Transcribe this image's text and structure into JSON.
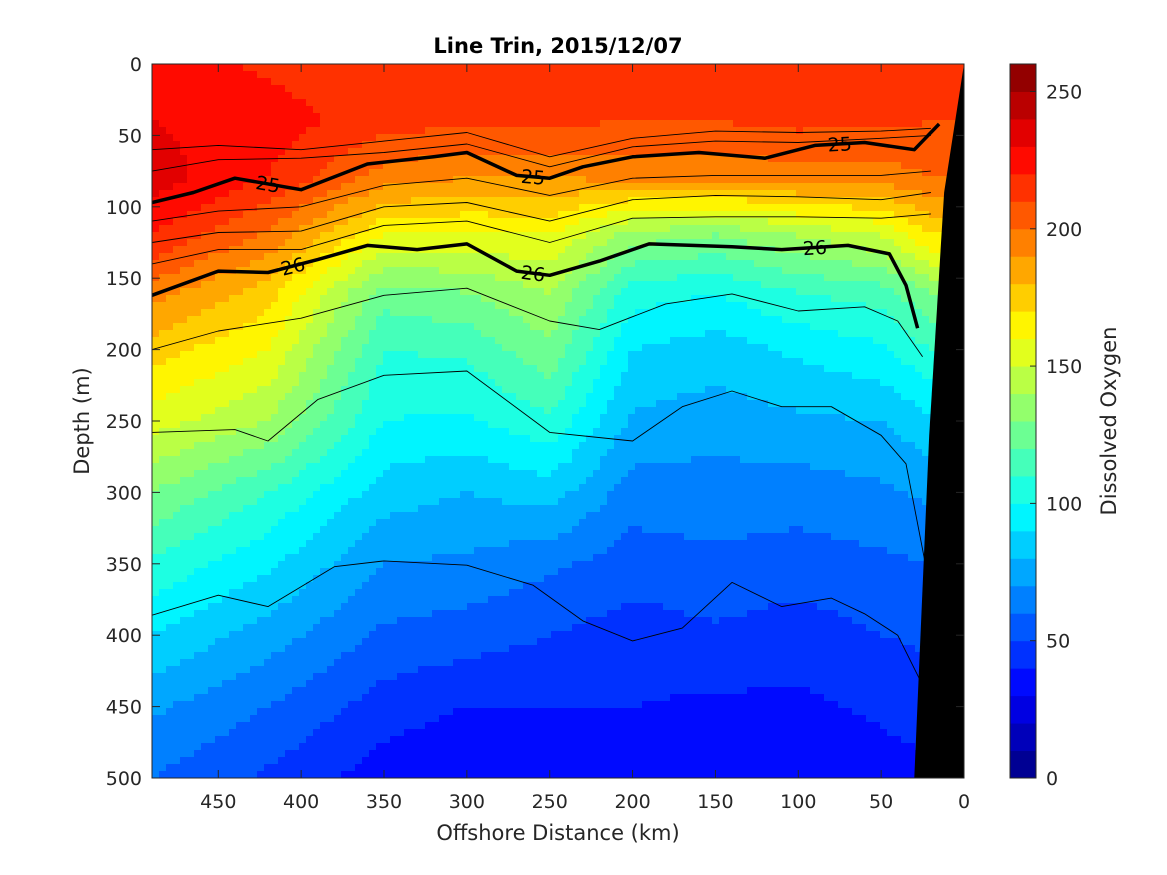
{
  "chart_data": {
    "type": "heatmap",
    "title": "Line Trin, 2015/12/07",
    "xlabel": "Offshore Distance (km)",
    "ylabel": "Depth (m)",
    "colorbar_label": "Dissolved Oxygen",
    "xlim": [
      490,
      0
    ],
    "ylim": [
      0,
      500
    ],
    "x_reversed": true,
    "y_reversed": true,
    "clim": [
      0,
      260
    ],
    "colormap": "jet",
    "color_levels": 26,
    "xticks": [
      "450",
      "400",
      "350",
      "300",
      "250",
      "200",
      "150",
      "100",
      "50",
      "0"
    ],
    "xtick_values": [
      450,
      400,
      350,
      300,
      250,
      200,
      150,
      100,
      50,
      0
    ],
    "yticks": [
      "0",
      "50",
      "100",
      "150",
      "200",
      "250",
      "300",
      "350",
      "400",
      "450",
      "500"
    ],
    "ytick_values": [
      0,
      50,
      100,
      150,
      200,
      250,
      300,
      350,
      400,
      450,
      500
    ],
    "colorbar_ticks": [
      "0",
      "50",
      "100",
      "150",
      "200",
      "250"
    ],
    "colorbar_tick_values": [
      0,
      50,
      100,
      150,
      200,
      250
    ],
    "oxygen_profiles": {
      "x": [
        490,
        420,
        350,
        300,
        250,
        200,
        150,
        100,
        50,
        20
      ],
      "depth": [
        0,
        40,
        80,
        120,
        160,
        200,
        250,
        300,
        350,
        400,
        450,
        500
      ],
      "values": [
        [
          225,
          218,
          212,
          210,
          212,
          210,
          212,
          215,
          215,
          212
        ],
        [
          230,
          225,
          215,
          212,
          212,
          210,
          210,
          213,
          212,
          210
        ],
        [
          235,
          220,
          195,
          190,
          190,
          192,
          192,
          195,
          195,
          200
        ],
        [
          220,
          198,
          160,
          158,
          160,
          135,
          130,
          140,
          150,
          170
        ],
        [
          195,
          175,
          125,
          130,
          140,
          105,
          100,
          110,
          115,
          130
        ],
        [
          175,
          160,
          110,
          112,
          128,
          90,
          85,
          92,
          98,
          110
        ],
        [
          155,
          140,
          100,
          98,
          108,
          78,
          75,
          78,
          80,
          88
        ],
        [
          130,
          110,
          85,
          80,
          85,
          65,
          65,
          65,
          68,
          72
        ],
        [
          108,
          92,
          70,
          68,
          62,
          55,
          58,
          55,
          58,
          60
        ],
        [
          90,
          75,
          58,
          55,
          50,
          45,
          48,
          45,
          50,
          52
        ],
        [
          72,
          60,
          45,
          40,
          40,
          40,
          38,
          38,
          42,
          45
        ],
        [
          60,
          48,
          35,
          30,
          35,
          32,
          32,
          32,
          35,
          38
        ]
      ]
    },
    "density_contours": [
      {
        "label": "25",
        "bold": true,
        "points": [
          [
            490,
            97
          ],
          [
            465,
            90
          ],
          [
            440,
            80
          ],
          [
            400,
            88
          ],
          [
            360,
            70
          ],
          [
            320,
            65
          ],
          [
            300,
            62
          ],
          [
            270,
            78
          ],
          [
            250,
            80
          ],
          [
            230,
            72
          ],
          [
            200,
            65
          ],
          [
            160,
            62
          ],
          [
            120,
            66
          ],
          [
            90,
            57
          ],
          [
            60,
            55
          ],
          [
            30,
            60
          ],
          [
            15,
            42
          ]
        ]
      },
      {
        "label": "26",
        "bold": true,
        "points": [
          [
            490,
            162
          ],
          [
            450,
            145
          ],
          [
            420,
            146
          ],
          [
            390,
            137
          ],
          [
            360,
            127
          ],
          [
            330,
            130
          ],
          [
            300,
            126
          ],
          [
            270,
            145
          ],
          [
            250,
            148
          ],
          [
            220,
            138
          ],
          [
            190,
            126
          ],
          [
            140,
            128
          ],
          [
            110,
            130
          ],
          [
            70,
            127
          ],
          [
            45,
            133
          ],
          [
            35,
            155
          ],
          [
            28,
            185
          ]
        ]
      },
      {
        "label": "",
        "bold": false,
        "points": [
          [
            490,
            60
          ],
          [
            450,
            57
          ],
          [
            400,
            60
          ],
          [
            350,
            54
          ],
          [
            300,
            48
          ],
          [
            250,
            65
          ],
          [
            200,
            52
          ],
          [
            150,
            47
          ],
          [
            100,
            48
          ],
          [
            50,
            47
          ],
          [
            20,
            45
          ]
        ]
      },
      {
        "label": "",
        "bold": false,
        "points": [
          [
            490,
            75
          ],
          [
            450,
            67
          ],
          [
            400,
            66
          ],
          [
            350,
            62
          ],
          [
            300,
            56
          ],
          [
            250,
            72
          ],
          [
            200,
            58
          ],
          [
            150,
            54
          ],
          [
            100,
            55
          ],
          [
            50,
            52
          ],
          [
            20,
            50
          ]
        ]
      },
      {
        "label": "",
        "bold": false,
        "points": [
          [
            490,
            110
          ],
          [
            450,
            103
          ],
          [
            400,
            100
          ],
          [
            350,
            85
          ],
          [
            300,
            80
          ],
          [
            250,
            92
          ],
          [
            200,
            80
          ],
          [
            150,
            78
          ],
          [
            100,
            78
          ],
          [
            50,
            78
          ],
          [
            20,
            75
          ]
        ]
      },
      {
        "label": "",
        "bold": false,
        "points": [
          [
            490,
            125
          ],
          [
            450,
            118
          ],
          [
            400,
            117
          ],
          [
            350,
            100
          ],
          [
            300,
            97
          ],
          [
            250,
            110
          ],
          [
            200,
            95
          ],
          [
            150,
            92
          ],
          [
            100,
            93
          ],
          [
            50,
            95
          ],
          [
            20,
            90
          ]
        ]
      },
      {
        "label": "",
        "bold": false,
        "points": [
          [
            490,
            140
          ],
          [
            450,
            130
          ],
          [
            400,
            130
          ],
          [
            350,
            113
          ],
          [
            300,
            110
          ],
          [
            250,
            125
          ],
          [
            200,
            108
          ],
          [
            150,
            107
          ],
          [
            100,
            107
          ],
          [
            50,
            108
          ],
          [
            20,
            105
          ]
        ]
      },
      {
        "label": "",
        "bold": false,
        "points": [
          [
            490,
            200
          ],
          [
            450,
            187
          ],
          [
            400,
            178
          ],
          [
            350,
            162
          ],
          [
            300,
            157
          ],
          [
            250,
            180
          ],
          [
            220,
            186
          ],
          [
            180,
            168
          ],
          [
            140,
            161
          ],
          [
            100,
            173
          ],
          [
            60,
            170
          ],
          [
            40,
            180
          ],
          [
            25,
            205
          ]
        ]
      },
      {
        "label": "",
        "bold": false,
        "points": [
          [
            490,
            258
          ],
          [
            440,
            256
          ],
          [
            420,
            264
          ],
          [
            390,
            235
          ],
          [
            350,
            218
          ],
          [
            300,
            215
          ],
          [
            250,
            258
          ],
          [
            200,
            264
          ],
          [
            170,
            240
          ],
          [
            140,
            229
          ],
          [
            110,
            240
          ],
          [
            80,
            240
          ],
          [
            50,
            260
          ],
          [
            35,
            280
          ],
          [
            20,
            370
          ]
        ]
      },
      {
        "label": "",
        "bold": false,
        "points": [
          [
            490,
            386
          ],
          [
            450,
            372
          ],
          [
            420,
            380
          ],
          [
            380,
            352
          ],
          [
            350,
            348
          ],
          [
            300,
            351
          ],
          [
            260,
            365
          ],
          [
            230,
            390
          ],
          [
            200,
            404
          ],
          [
            170,
            395
          ],
          [
            140,
            363
          ],
          [
            110,
            380
          ],
          [
            80,
            374
          ],
          [
            60,
            385
          ],
          [
            40,
            400
          ],
          [
            25,
            435
          ]
        ]
      }
    ]
  }
}
